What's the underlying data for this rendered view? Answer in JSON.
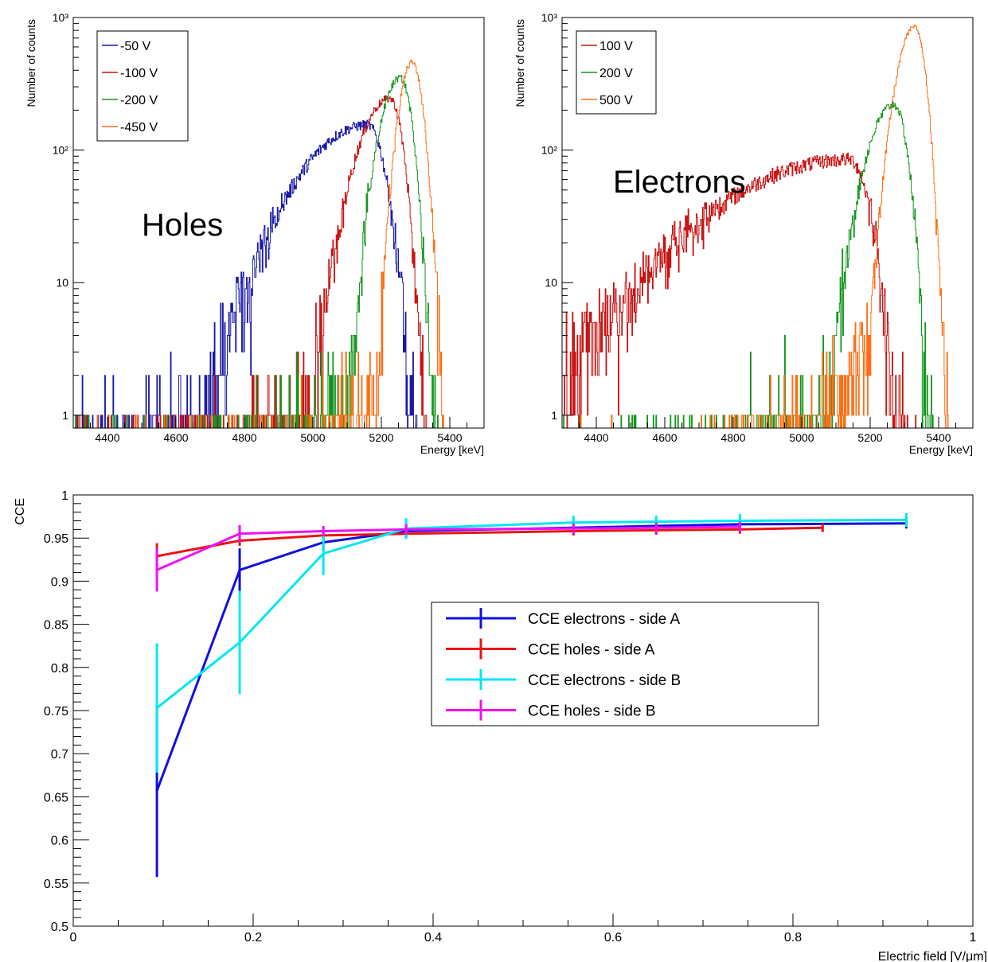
{
  "chart_data": [
    {
      "type": "line",
      "panel": "top-left",
      "annotation": "Holes",
      "xlabel": "Energy [keV]",
      "ylabel": "Number of counts",
      "xlim": [
        4300,
        5500
      ],
      "ylim": [
        0.8,
        1000
      ],
      "yscale": "log",
      "x_ticks": [
        4400,
        4600,
        4800,
        5000,
        5200,
        5400
      ],
      "y_ticks": [
        {
          "v": 1,
          "label": "1"
        },
        {
          "v": 10,
          "label": "10"
        },
        {
          "v": 100,
          "label": "10²"
        },
        {
          "v": 1000,
          "label": "10³"
        }
      ],
      "legend_position": "top-left",
      "series": [
        {
          "name": "-50 V",
          "color": "#1a1aa6",
          "peak": 5160,
          "peak_count": 155,
          "left_width": 150,
          "right_width": 40
        },
        {
          "name": "-100 V",
          "color": "#c81414",
          "peak": 5225,
          "peak_count": 245,
          "left_width": 70,
          "right_width": 30
        },
        {
          "name": "-200 V",
          "color": "#14961e",
          "peak": 5255,
          "peak_count": 350,
          "left_width": 45,
          "right_width": 28
        },
        {
          "name": "-450 V",
          "color": "#ff6e14",
          "peak": 5290,
          "peak_count": 460,
          "left_width": 30,
          "right_width": 25
        }
      ]
    },
    {
      "type": "line",
      "panel": "top-right",
      "annotation": "Electrons",
      "xlabel": "Energy [keV]",
      "ylabel": "Number of counts",
      "xlim": [
        4300,
        5500
      ],
      "ylim": [
        0.8,
        1000
      ],
      "yscale": "log",
      "x_ticks": [
        4400,
        4600,
        4800,
        5000,
        5200,
        5400
      ],
      "y_ticks": [
        {
          "v": 1,
          "label": "1"
        },
        {
          "v": 10,
          "label": "10"
        },
        {
          "v": 100,
          "label": "10²"
        },
        {
          "v": 1000,
          "label": "10³"
        }
      ],
      "legend_position": "top-left",
      "series": [
        {
          "name": "100 V",
          "color": "#c81414",
          "peak": 5140,
          "peak_count": 85,
          "left_width": 300,
          "right_width": 45
        },
        {
          "name": "200 V",
          "color": "#14961e",
          "peak": 5270,
          "peak_count": 220,
          "left_width": 60,
          "right_width": 30
        },
        {
          "name": "500 V",
          "color": "#ff6e14",
          "peak": 5330,
          "peak_count": 850,
          "left_width": 40,
          "right_width": 25
        }
      ]
    },
    {
      "type": "line",
      "panel": "bottom",
      "xlabel": "Electric field [V/μm]",
      "ylabel": "CCE",
      "xlim": [
        0,
        1
      ],
      "ylim": [
        0.5,
        1
      ],
      "x_ticks": [
        0,
        0.2,
        0.4,
        0.6,
        0.8,
        1
      ],
      "y_ticks": [
        0.5,
        0.55,
        0.6,
        0.65,
        0.7,
        0.75,
        0.8,
        0.85,
        0.9,
        0.95,
        1
      ],
      "legend_position": "center-right",
      "series": [
        {
          "name": "CCE electrons - side A",
          "color": "#1010e0",
          "x": [
            0.093,
            0.185,
            0.278,
            0.37,
            0.556,
            0.648,
            0.741,
            0.926
          ],
          "y": [
            0.657,
            0.913,
            0.945,
            0.958,
            0.962,
            0.964,
            0.966,
            0.967
          ],
          "err": [
            0.1,
            0.025,
            0.01,
            0.008,
            0.006,
            0.005,
            0.005,
            0.006
          ]
        },
        {
          "name": "CCE holes - side A",
          "color": "#e81414",
          "x": [
            0.093,
            0.185,
            0.278,
            0.37,
            0.556,
            0.648,
            0.741,
            0.833
          ],
          "y": [
            0.929,
            0.947,
            0.953,
            0.955,
            0.958,
            0.959,
            0.96,
            0.962
          ],
          "err": [
            0.015,
            0.006,
            0.005,
            0.005,
            0.005,
            0.005,
            0.005,
            0.005
          ]
        },
        {
          "name": "CCE electrons - side B",
          "color": "#00e8f0",
          "x": [
            0.093,
            0.185,
            0.278,
            0.37,
            0.556,
            0.648,
            0.741,
            0.926
          ],
          "y": [
            0.753,
            0.829,
            0.932,
            0.961,
            0.968,
            0.969,
            0.97,
            0.971
          ],
          "err": [
            0.075,
            0.06,
            0.025,
            0.012,
            0.008,
            0.007,
            0.008,
            0.008
          ]
        },
        {
          "name": "CCE holes - side B",
          "color": "#f010f0",
          "x": [
            0.093,
            0.185,
            0.278,
            0.37,
            0.556,
            0.648,
            0.741
          ],
          "y": [
            0.913,
            0.955,
            0.958,
            0.96,
            0.961,
            0.962,
            0.963
          ],
          "err": [
            0.025,
            0.01,
            0.006,
            0.006,
            0.006,
            0.006,
            0.006
          ]
        }
      ]
    }
  ]
}
